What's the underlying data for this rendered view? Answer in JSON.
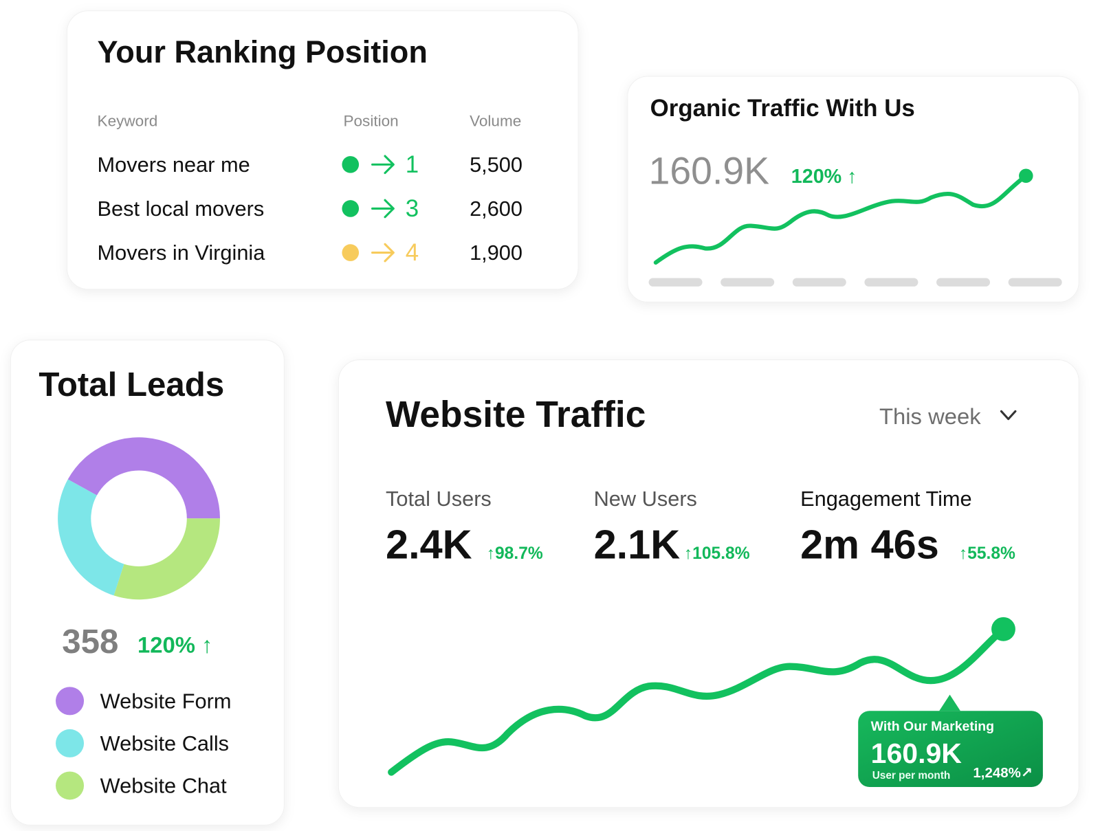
{
  "ranking": {
    "title": "Your Ranking Position",
    "headers": [
      "Keyword",
      "Position",
      "Volume"
    ],
    "rows": [
      {
        "keyword": "Movers near me",
        "position": 1,
        "volume": "5,500",
        "color": "#12c15f"
      },
      {
        "keyword": "Best local movers",
        "position": 3,
        "volume": "2,600",
        "color": "#12c15f"
      },
      {
        "keyword": "Movers in Virginia",
        "position": 4,
        "volume": "1,900",
        "color": "#f7cb5c"
      }
    ]
  },
  "organic": {
    "title": "Organic Traffic With Us",
    "value": "160.9K",
    "change": "120% ↑"
  },
  "leads": {
    "title": "Total Leads",
    "total": 358,
    "change": "120% ↑"
  },
  "chart_data": {
    "type": "pie",
    "categories": [
      "Website Form",
      "Website Calls",
      "Website Chat"
    ],
    "values": [
      42,
      28,
      30
    ],
    "colors": [
      "#b07fe8",
      "#7de6e8",
      "#b5e77f"
    ]
  },
  "website_traffic": {
    "title": "Website Traffic",
    "period": "This week",
    "metrics": [
      {
        "label": "Total Users",
        "value": "2.4K",
        "change": "↑98.7%"
      },
      {
        "label": "New Users",
        "value": "2.1K",
        "change": "↑105.8%"
      },
      {
        "label": "Engagement Time",
        "value": "2m 46s",
        "change": "↑55.8%"
      }
    ],
    "callout": {
      "title": "With Our Marketing",
      "value": "160.9K",
      "subtitle": "User per month",
      "change": "1,248%↗"
    }
  }
}
